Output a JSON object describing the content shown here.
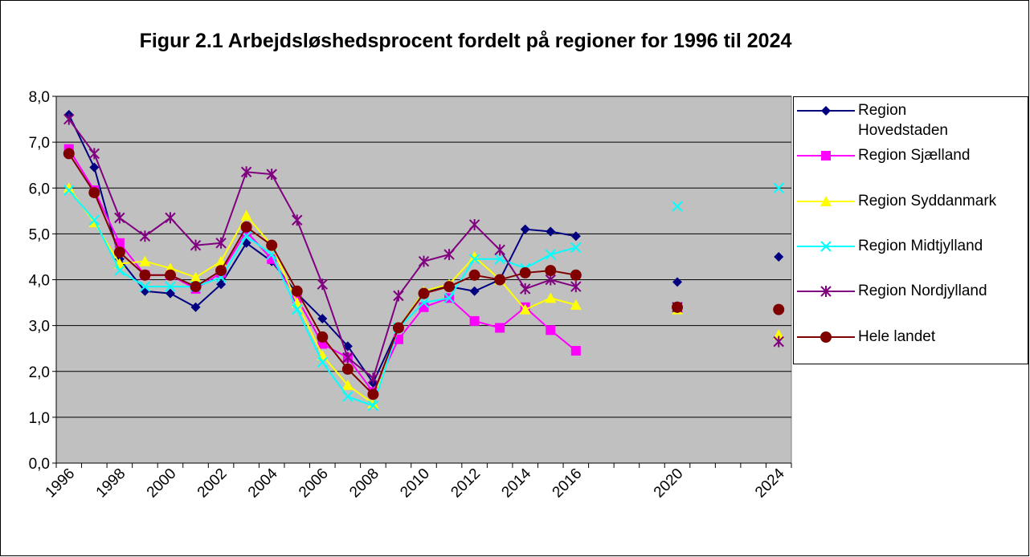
{
  "chart_data": {
    "type": "line",
    "title": "Figur 2.1 Arbejdsløshedsprocent fordelt på regioner for 1996 til 2024",
    "categories": [
      "1996",
      null,
      "1998",
      null,
      "2000",
      null,
      "2002",
      null,
      "2004",
      null,
      "2006",
      null,
      "2008",
      null,
      "2010",
      null,
      "2012",
      null,
      "2014",
      null,
      "2016",
      null,
      null,
      null,
      "2020",
      null,
      null,
      null,
      "2024"
    ],
    "ylim": [
      0,
      8
    ],
    "yticks": [
      {
        "value": 0,
        "label": "0,0"
      },
      {
        "value": 1,
        "label": "1,0"
      },
      {
        "value": 2,
        "label": "2,0"
      },
      {
        "value": 3,
        "label": "3,0"
      },
      {
        "value": 4,
        "label": "4,0"
      },
      {
        "value": 5,
        "label": "5,0"
      },
      {
        "value": 6,
        "label": "6,0"
      },
      {
        "value": 7,
        "label": "7,0"
      },
      {
        "value": 8,
        "label": "8,0"
      }
    ],
    "grid": true,
    "legend": "right",
    "series": [
      {
        "name": "Region Hovedstaden",
        "color": "#000080",
        "marker": "diamond",
        "values": [
          7.6,
          6.45,
          4.45,
          3.75,
          3.7,
          3.4,
          3.9,
          4.8,
          4.4,
          3.7,
          3.15,
          2.55,
          1.75,
          2.95,
          3.75,
          3.85,
          3.75,
          4.0,
          5.1,
          5.05,
          4.95,
          null,
          null,
          null,
          3.95,
          null,
          null,
          null,
          4.5
        ]
      },
      {
        "name": "Region Sjælland",
        "color": "#ff00ff",
        "marker": "square",
        "values": [
          6.85,
          5.95,
          4.8,
          4.1,
          4.1,
          3.8,
          4.15,
          5.05,
          4.45,
          3.6,
          2.6,
          2.3,
          1.55,
          2.7,
          3.4,
          3.6,
          3.1,
          2.95,
          3.4,
          2.9,
          2.45,
          null,
          null,
          null,
          3.4,
          null,
          null,
          null,
          null
        ]
      },
      {
        "name": "Region Syddanmark",
        "color": "#ffff00",
        "marker": "triangle",
        "values": [
          6.0,
          5.25,
          4.35,
          4.4,
          4.25,
          4.05,
          4.4,
          5.4,
          4.75,
          3.5,
          2.35,
          1.7,
          1.3,
          2.95,
          3.75,
          3.9,
          4.5,
          4.0,
          3.35,
          3.6,
          3.45,
          null,
          null,
          null,
          3.35,
          null,
          null,
          null,
          2.8
        ]
      },
      {
        "name": "Region Midtjylland",
        "color": "#00ffff",
        "marker": "x",
        "values": [
          5.95,
          5.3,
          4.2,
          3.85,
          3.85,
          3.85,
          4.05,
          4.95,
          4.55,
          3.35,
          2.2,
          1.45,
          1.25,
          2.95,
          3.5,
          3.6,
          4.45,
          4.45,
          4.25,
          4.55,
          4.7,
          null,
          null,
          null,
          5.6,
          null,
          null,
          null,
          6.0
        ]
      },
      {
        "name": "Region Nordjylland",
        "color": "#800080",
        "marker": "star",
        "values": [
          7.5,
          6.75,
          5.35,
          4.95,
          5.35,
          4.75,
          4.8,
          6.35,
          6.3,
          5.3,
          3.9,
          2.3,
          1.85,
          3.65,
          4.4,
          4.55,
          5.2,
          4.65,
          3.8,
          4.0,
          3.85,
          null,
          null,
          null,
          3.4,
          null,
          null,
          null,
          2.65
        ]
      },
      {
        "name": "Hele landet",
        "color": "#800000",
        "marker": "circle",
        "values": [
          6.75,
          5.9,
          4.6,
          4.1,
          4.1,
          3.85,
          4.2,
          5.15,
          4.75,
          3.75,
          2.75,
          2.05,
          1.5,
          2.95,
          3.7,
          3.85,
          4.1,
          4.0,
          4.15,
          4.2,
          4.1,
          null,
          null,
          null,
          3.4,
          null,
          null,
          null,
          3.35
        ]
      }
    ]
  }
}
